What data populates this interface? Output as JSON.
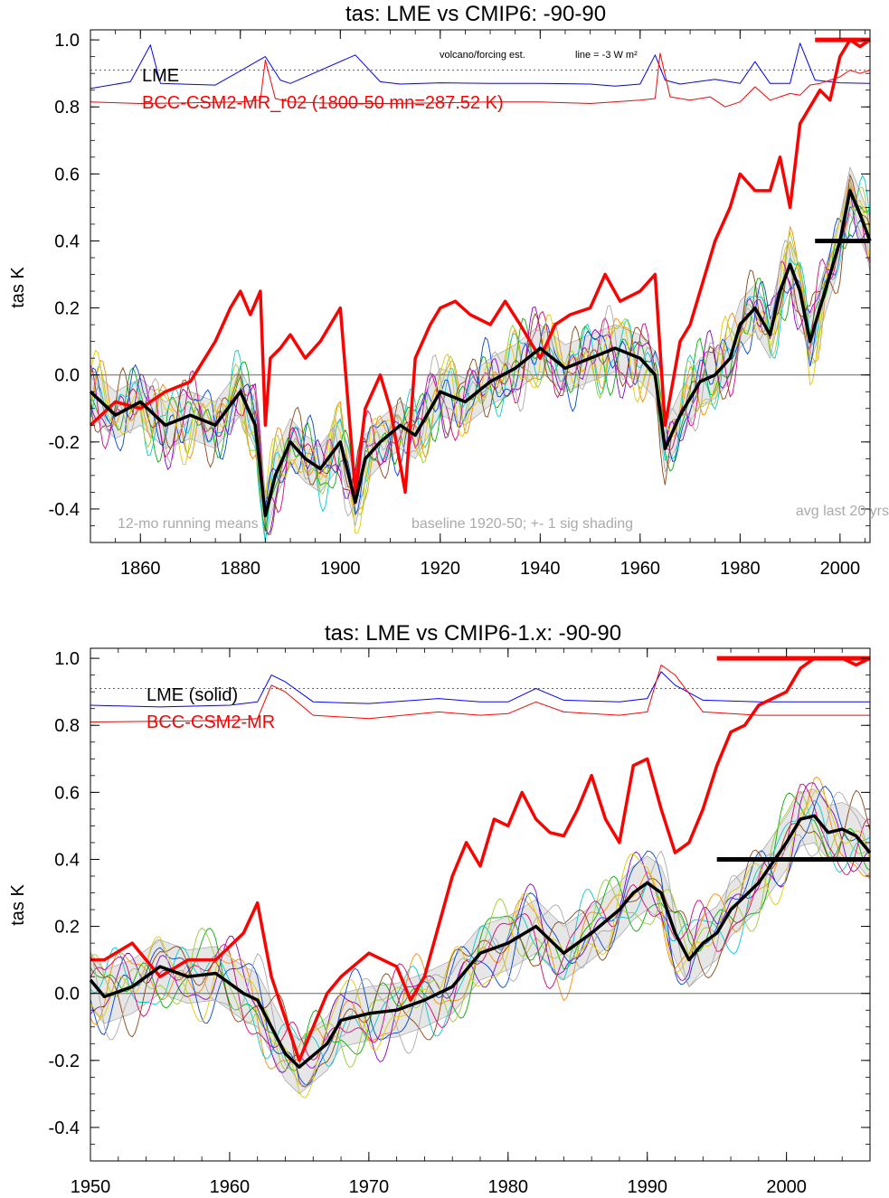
{
  "figure": {
    "colors": {
      "lme": "#0000ff",
      "model": "#ff0000",
      "lme_mean": "#000000",
      "ensemble_palette": [
        "#ff8800",
        "#00b000",
        "#8800cc",
        "#00cccc",
        "#9acd32",
        "#dd0077",
        "#0044dd",
        "#8b4513",
        "#aaaaaa",
        "#ddcc00"
      ]
    }
  },
  "chart_data": [
    {
      "type": "line",
      "title": "tas: LME vs CMIP6: -90-90",
      "xlabel": "",
      "ylabel": "tas K",
      "xlim": [
        1850,
        2006
      ],
      "ylim": [
        -0.5,
        1.03
      ],
      "xticks": [
        1860,
        1880,
        1900,
        1920,
        1940,
        1960,
        1980,
        2000
      ],
      "xtick_labels": [
        "1860",
        "1880",
        "1900",
        "1920",
        "1940",
        "1960",
        "1980",
        "2000"
      ],
      "yticks": [
        -0.4,
        -0.2,
        0.0,
        0.2,
        0.4,
        0.6,
        0.8,
        1.0
      ],
      "ytick_labels": [
        "-0.4",
        "-0.2",
        "0.0",
        "0.2",
        "0.4",
        "0.6",
        "0.8",
        "1.0"
      ],
      "grid": false,
      "legend": [
        "LME",
        "BCC-CSM2-MR_r02 (1800-50 mn=287.52 K)"
      ],
      "annotations": {
        "forcing": "volcano/forcing est.",
        "forcing_line": "line = -3 W m²",
        "running": "12-mo running means",
        "baseline": "baseline 1920-50; +- 1 sig shading",
        "avg": "avg last 20 yrs"
      },
      "reference_line_y": 0.91,
      "series": [
        {
          "name": "LME",
          "x": [
            1850,
            1858,
            1862,
            1864,
            1875,
            1885,
            1888,
            1890,
            1903,
            1908,
            1912,
            1920,
            1930,
            1940,
            1950,
            1955,
            1960,
            1963,
            1965,
            1968,
            1975,
            1980,
            1983,
            1986,
            1990,
            1992,
            1995,
            2000,
            2006
          ],
          "y": [
            0.855,
            0.875,
            0.985,
            0.87,
            0.865,
            0.95,
            0.88,
            0.87,
            0.955,
            0.875,
            0.868,
            0.872,
            0.87,
            0.87,
            0.868,
            0.862,
            0.868,
            0.955,
            0.88,
            0.868,
            0.882,
            0.87,
            0.935,
            0.87,
            0.87,
            0.99,
            0.88,
            0.872,
            0.87
          ]
        },
        {
          "name": "BCC-CSM2-MR_r02 (1800-50 mn=287.52 K)",
          "x": [
            1850,
            1860,
            1870,
            1880,
            1884,
            1885,
            1887,
            1890,
            1900,
            1910,
            1920,
            1930,
            1940,
            1950,
            1960,
            1963,
            1964,
            1966,
            1970,
            1974,
            1977,
            1980,
            1983,
            1986,
            1990,
            1992,
            1994,
            1996,
            1998,
            2000,
            2002,
            2004,
            2006
          ],
          "y": [
            0.815,
            0.81,
            0.812,
            0.815,
            0.82,
            0.94,
            0.825,
            0.815,
            0.81,
            0.81,
            0.812,
            0.815,
            0.815,
            0.81,
            0.82,
            0.825,
            0.96,
            0.83,
            0.82,
            0.83,
            0.8,
            0.815,
            0.86,
            0.82,
            0.84,
            0.835,
            0.865,
            0.87,
            0.88,
            0.89,
            0.91,
            0.9,
            0.91
          ]
        },
        {
          "name": "",
          "role": "model-tas",
          "x": [
            1850,
            1855,
            1860,
            1865,
            1870,
            1875,
            1878,
            1880,
            1882,
            1884,
            1885,
            1886,
            1888,
            1890,
            1893,
            1896,
            1900,
            1903,
            1905,
            1908,
            1910,
            1913,
            1915,
            1918,
            1920,
            1923,
            1926,
            1930,
            1933,
            1936,
            1940,
            1943,
            1946,
            1950,
            1953,
            1956,
            1960,
            1963,
            1965,
            1968,
            1970,
            1973,
            1975,
            1978,
            1980,
            1983,
            1986,
            1988,
            1990,
            1992,
            1994,
            1996,
            1998,
            2000,
            2002,
            2004,
            2006
          ],
          "y": [
            -0.15,
            -0.08,
            -0.1,
            -0.05,
            -0.02,
            0.1,
            0.2,
            0.25,
            0.18,
            0.25,
            -0.15,
            0.05,
            0.08,
            0.12,
            0.05,
            0.1,
            0.2,
            -0.35,
            -0.1,
            0.0,
            -0.1,
            -0.35,
            0.05,
            0.15,
            0.2,
            0.22,
            0.18,
            0.15,
            0.22,
            0.15,
            0.05,
            0.15,
            0.18,
            0.2,
            0.3,
            0.22,
            0.25,
            0.3,
            -0.15,
            0.1,
            0.15,
            0.3,
            0.4,
            0.5,
            0.6,
            0.55,
            0.55,
            0.65,
            0.5,
            0.75,
            0.8,
            0.85,
            0.82,
            0.95,
            1.0,
            0.98,
            1.0
          ]
        },
        {
          "name": "",
          "role": "lme-mean",
          "x": [
            1850,
            1855,
            1860,
            1865,
            1870,
            1875,
            1880,
            1883,
            1885,
            1887,
            1890,
            1893,
            1896,
            1900,
            1903,
            1905,
            1908,
            1912,
            1915,
            1920,
            1925,
            1930,
            1935,
            1940,
            1945,
            1950,
            1955,
            1960,
            1963,
            1965,
            1968,
            1972,
            1975,
            1978,
            1980,
            1983,
            1986,
            1988,
            1990,
            1992,
            1994,
            1996,
            1998,
            2000,
            2002,
            2004,
            2006
          ],
          "y": [
            -0.05,
            -0.12,
            -0.08,
            -0.15,
            -0.12,
            -0.15,
            -0.05,
            -0.15,
            -0.42,
            -0.3,
            -0.2,
            -0.25,
            -0.28,
            -0.2,
            -0.38,
            -0.25,
            -0.2,
            -0.15,
            -0.18,
            -0.05,
            -0.08,
            -0.02,
            0.02,
            0.08,
            0.02,
            0.05,
            0.08,
            0.05,
            0.0,
            -0.22,
            -0.12,
            -0.02,
            0.0,
            0.05,
            0.15,
            0.2,
            0.12,
            0.25,
            0.33,
            0.25,
            0.1,
            0.2,
            0.3,
            0.4,
            0.55,
            0.48,
            0.4
          ]
        }
      ],
      "hlines": [
        {
          "role": "model-avg-last-20",
          "x": [
            1995,
            2006
          ],
          "y": 1.0
        },
        {
          "role": "lme-avg-last-20",
          "x": [
            1995,
            2006
          ],
          "y": 0.4
        }
      ]
    },
    {
      "type": "line",
      "title": "tas: LME vs CMIP6-1.x: -90-90",
      "xlabel": "",
      "ylabel": "tas K",
      "xlim": [
        1950,
        2006
      ],
      "ylim": [
        -0.5,
        1.03
      ],
      "xticks": [
        1950,
        1960,
        1970,
        1980,
        1990,
        2000
      ],
      "xtick_labels": [
        "1950",
        "1960",
        "1970",
        "1980",
        "1990",
        "2000"
      ],
      "yticks": [
        -0.4,
        -0.2,
        0.0,
        0.2,
        0.4,
        0.6,
        0.8,
        1.0
      ],
      "ytick_labels": [
        "-0.4",
        "-0.2",
        "0.0",
        "0.2",
        "0.4",
        "0.6",
        "0.8",
        "1.0"
      ],
      "grid": false,
      "legend": [
        "LME (solid)",
        "BCC-CSM2-MR"
      ],
      "reference_line_y": 0.91,
      "series": [
        {
          "name": "LME (solid)",
          "x": [
            1950,
            1955,
            1960,
            1962,
            1963,
            1964,
            1966,
            1970,
            1975,
            1978,
            1980,
            1982,
            1984,
            1988,
            1990,
            1991,
            1992,
            1994,
            1998,
            2002,
            2006
          ],
          "y": [
            0.86,
            0.855,
            0.86,
            0.87,
            0.95,
            0.93,
            0.87,
            0.865,
            0.88,
            0.87,
            0.87,
            0.91,
            0.875,
            0.87,
            0.88,
            0.96,
            0.92,
            0.875,
            0.87,
            0.87,
            0.87
          ]
        },
        {
          "name": "BCC-CSM2-MR",
          "x": [
            1950,
            1955,
            1960,
            1962,
            1963,
            1964,
            1966,
            1970,
            1975,
            1978,
            1980,
            1982,
            1984,
            1988,
            1990,
            1991,
            1992,
            1994,
            1998,
            2002,
            2006
          ],
          "y": [
            0.81,
            0.812,
            0.815,
            0.82,
            0.92,
            0.9,
            0.83,
            0.82,
            0.84,
            0.83,
            0.835,
            0.87,
            0.84,
            0.83,
            0.84,
            0.98,
            0.95,
            0.84,
            0.83,
            0.83,
            0.83
          ]
        },
        {
          "name": "",
          "role": "model-tas",
          "x": [
            1950,
            1951,
            1953,
            1955,
            1957,
            1959,
            1961,
            1962,
            1963,
            1965,
            1966,
            1967,
            1968,
            1970,
            1972,
            1973,
            1974,
            1976,
            1977,
            1978,
            1979,
            1980,
            1981,
            1982,
            1983,
            1984,
            1985,
            1986,
            1987,
            1988,
            1989,
            1990,
            1991,
            1992,
            1993,
            1994,
            1995,
            1996,
            1997,
            1998,
            1999,
            2000,
            2001,
            2002,
            2003,
            2004,
            2005,
            2006
          ],
          "y": [
            0.1,
            0.1,
            0.15,
            0.05,
            0.1,
            0.1,
            0.18,
            0.27,
            0.05,
            -0.2,
            -0.1,
            0.0,
            0.05,
            0.12,
            0.08,
            -0.02,
            0.05,
            0.35,
            0.45,
            0.38,
            0.52,
            0.5,
            0.6,
            0.52,
            0.48,
            0.47,
            0.55,
            0.65,
            0.52,
            0.45,
            0.68,
            0.7,
            0.55,
            0.42,
            0.45,
            0.55,
            0.68,
            0.78,
            0.8,
            0.86,
            0.88,
            0.9,
            0.97,
            1.0,
            1.0,
            1.0,
            0.98,
            1.0
          ]
        },
        {
          "name": "",
          "role": "lme-mean",
          "x": [
            1950,
            1951,
            1953,
            1955,
            1957,
            1959,
            1961,
            1962,
            1963,
            1964,
            1965,
            1967,
            1968,
            1970,
            1972,
            1974,
            1976,
            1978,
            1980,
            1982,
            1984,
            1986,
            1988,
            1989,
            1990,
            1991,
            1992,
            1993,
            1994,
            1995,
            1996,
            1998,
            2000,
            2001,
            2002,
            2003,
            2004,
            2005,
            2006
          ],
          "y": [
            0.04,
            -0.01,
            0.02,
            0.08,
            0.05,
            0.06,
            0.0,
            -0.02,
            -0.1,
            -0.18,
            -0.22,
            -0.15,
            -0.08,
            -0.06,
            -0.05,
            -0.02,
            0.02,
            0.12,
            0.15,
            0.2,
            0.12,
            0.18,
            0.25,
            0.3,
            0.33,
            0.3,
            0.18,
            0.1,
            0.15,
            0.18,
            0.25,
            0.33,
            0.45,
            0.52,
            0.53,
            0.48,
            0.49,
            0.47,
            0.42
          ]
        }
      ],
      "hlines": [
        {
          "role": "model-avg-last-20",
          "x": [
            1995,
            2006
          ],
          "y": 1.0
        },
        {
          "role": "lme-avg-last-20",
          "x": [
            1995,
            2006
          ],
          "y": 0.4
        }
      ]
    }
  ]
}
